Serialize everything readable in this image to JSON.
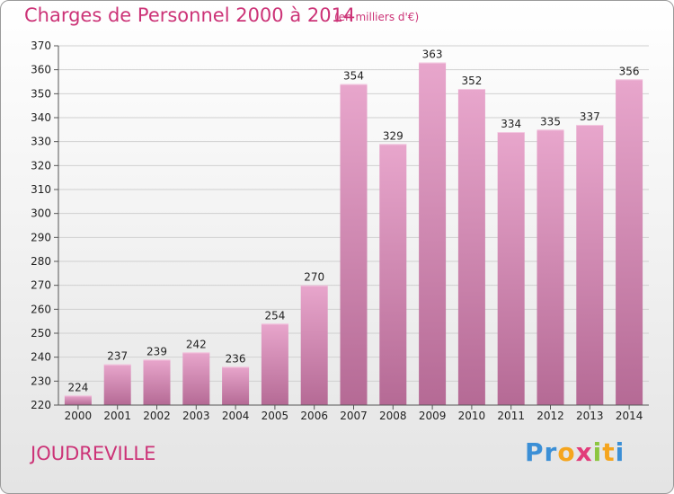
{
  "header": {
    "title": "Charges de Personnel 2000 à 2014",
    "subtitle": "(en milliers d'€)"
  },
  "footer": {
    "commune": "JOUDREVILLE",
    "logo_letters": [
      {
        "ch": "P",
        "color": "#3b8fd6"
      },
      {
        "ch": "r",
        "color": "#3b8fd6"
      },
      {
        "ch": "o",
        "color": "#f5a51e"
      },
      {
        "ch": "x",
        "color": "#e23c7a"
      },
      {
        "ch": "i",
        "color": "#8cc63f"
      },
      {
        "ch": "t",
        "color": "#f5a51e"
      },
      {
        "ch": "i",
        "color": "#3b8fd6"
      }
    ]
  },
  "chart_data": {
    "type": "bar",
    "title": "Charges de Personnel 2000 à 2014",
    "xlabel": "",
    "ylabel": "",
    "categories": [
      "2000",
      "2001",
      "2002",
      "2003",
      "2004",
      "2005",
      "2006",
      "2007",
      "2008",
      "2009",
      "2010",
      "2011",
      "2012",
      "2013",
      "2014"
    ],
    "values": [
      224,
      237,
      239,
      242,
      236,
      254,
      270,
      354,
      329,
      363,
      352,
      334,
      335,
      337,
      356
    ],
    "ylim": [
      220,
      370
    ],
    "yticks": [
      220,
      230,
      240,
      250,
      260,
      270,
      280,
      290,
      300,
      310,
      320,
      330,
      340,
      350,
      360,
      370
    ],
    "grid": true,
    "bar_color_top": "#e8a6cc",
    "bar_color_bottom": "#b56a95"
  }
}
